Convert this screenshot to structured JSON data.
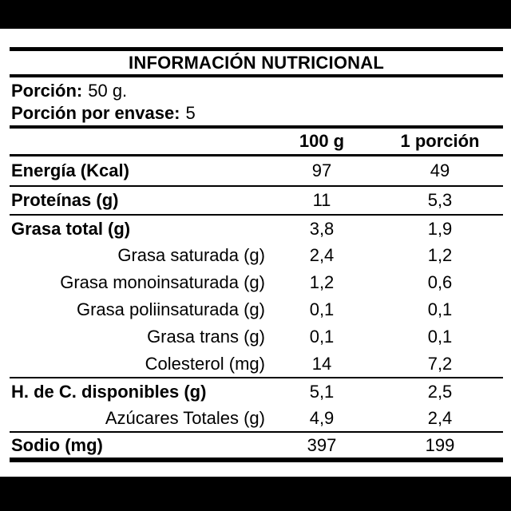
{
  "title": "INFORMACIÓN NUTRICIONAL",
  "serving": {
    "portion": {
      "label": "Porción:",
      "value": "50 g."
    },
    "per_container": {
      "label": "Porción por envase:",
      "value": "5"
    }
  },
  "columns": {
    "per100": "100 g",
    "portion": "1 porción"
  },
  "rows": [
    {
      "label": "Energía (Kcal)",
      "per100": "97",
      "portion": "49"
    },
    {
      "label": "Proteínas (g)",
      "per100": "11",
      "portion": "5,3"
    },
    {
      "label": "Grasa total (g)",
      "per100": "3,8",
      "portion": "1,9"
    },
    {
      "label": "Grasa saturada (g)",
      "per100": "2,4",
      "portion": "1,2"
    },
    {
      "label": "Grasa monoinsaturada (g)",
      "per100": "1,2",
      "portion": "0,6"
    },
    {
      "label": "Grasa poliinsaturada (g)",
      "per100": "0,1",
      "portion": "0,1"
    },
    {
      "label": "Grasa trans (g)",
      "per100": "0,1",
      "portion": "0,1"
    },
    {
      "label": "Colesterol (mg)",
      "per100": "14",
      "portion": "7,2"
    },
    {
      "label": "H. de C. disponibles (g)",
      "per100": "5,1",
      "portion": "2,5"
    },
    {
      "label": "Azúcares Totales (g)",
      "per100": "4,9",
      "portion": "2,4"
    },
    {
      "label": "Sodio (mg)",
      "per100": "397",
      "portion": "199"
    }
  ],
  "colors": {
    "ink": "#000000",
    "paper": "#ffffff",
    "letterbox": "#000000"
  }
}
